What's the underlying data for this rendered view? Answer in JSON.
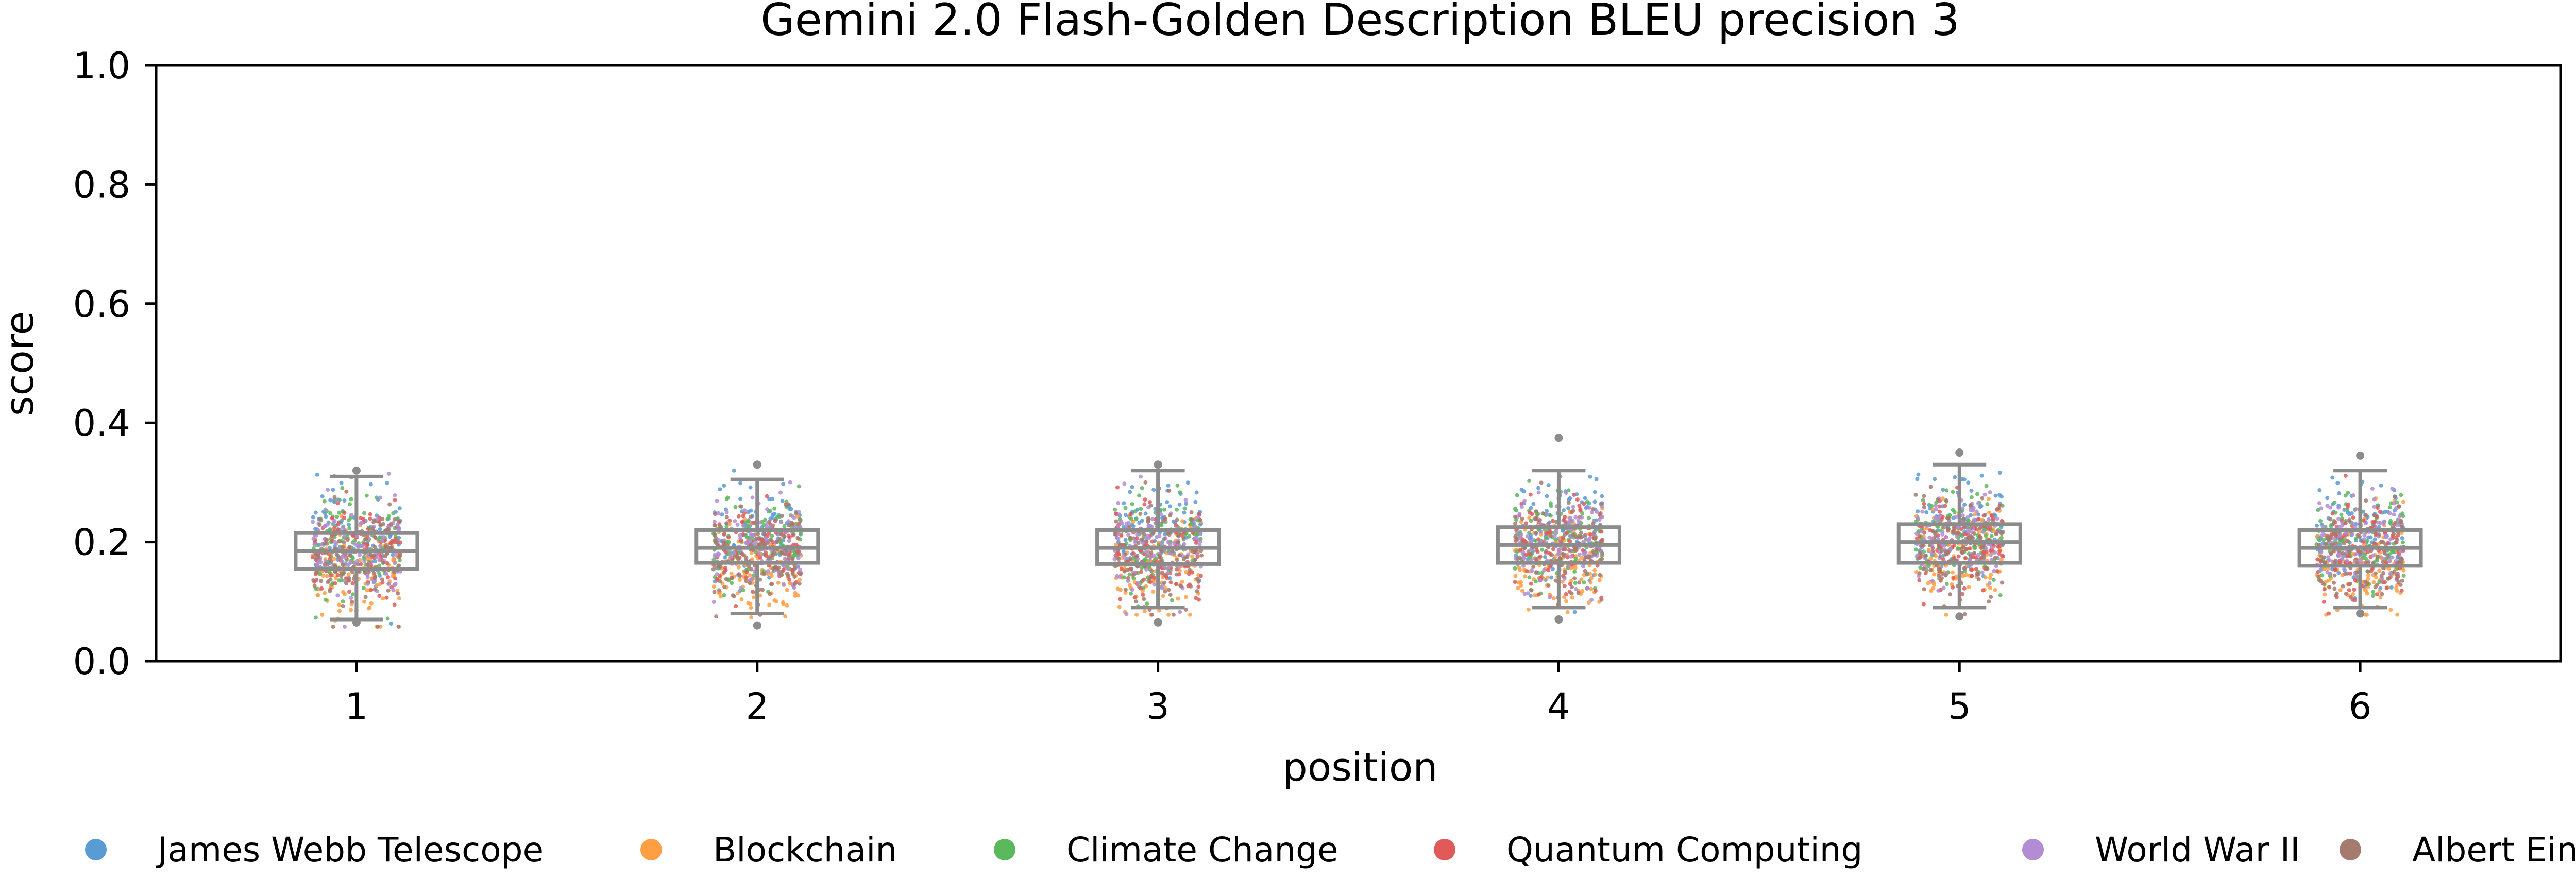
{
  "chart_data": {
    "type": "scatter",
    "subtype": "strip-plot-with-boxplot",
    "title": "Gemini 2.0 Flash-Golden Description BLEU precision 3",
    "xlabel": "position",
    "ylabel": "score",
    "ylim": [
      0.0,
      1.0
    ],
    "yticks": [
      "0.0",
      "0.2",
      "0.4",
      "0.6",
      "0.8",
      "1.0"
    ],
    "categories": [
      "1",
      "2",
      "3",
      "4",
      "5",
      "6"
    ],
    "grid": false,
    "legend_position": "bottom",
    "box_color": "#8c8c8c",
    "boxes": [
      {
        "position": "1",
        "whisker_low": 0.07,
        "q1": 0.155,
        "median": 0.185,
        "q3": 0.215,
        "whisker_high": 0.31,
        "outliers": [
          0.065,
          0.32
        ]
      },
      {
        "position": "2",
        "whisker_low": 0.08,
        "q1": 0.165,
        "median": 0.19,
        "q3": 0.22,
        "whisker_high": 0.305,
        "outliers": [
          0.06,
          0.33
        ]
      },
      {
        "position": "3",
        "whisker_low": 0.09,
        "q1": 0.163,
        "median": 0.19,
        "q3": 0.22,
        "whisker_high": 0.32,
        "outliers": [
          0.065,
          0.33
        ]
      },
      {
        "position": "4",
        "whisker_low": 0.09,
        "q1": 0.165,
        "median": 0.195,
        "q3": 0.225,
        "whisker_high": 0.32,
        "outliers": [
          0.07,
          0.375
        ]
      },
      {
        "position": "5",
        "whisker_low": 0.09,
        "q1": 0.165,
        "median": 0.2,
        "q3": 0.23,
        "whisker_high": 0.33,
        "outliers": [
          0.075,
          0.35
        ]
      },
      {
        "position": "6",
        "whisker_low": 0.09,
        "q1": 0.16,
        "median": 0.19,
        "q3": 0.22,
        "whisker_high": 0.32,
        "outliers": [
          0.08,
          0.345
        ]
      }
    ],
    "series": [
      {
        "name": "James Webb Telescope",
        "color": "#5b9bd5",
        "mean": 0.21,
        "sd": 0.042
      },
      {
        "name": "Blockchain",
        "color": "#ff9f43",
        "mean": 0.16,
        "sd": 0.04
      },
      {
        "name": "Climate Change",
        "color": "#5cb85c",
        "mean": 0.2,
        "sd": 0.04
      },
      {
        "name": "Quantum Computing",
        "color": "#e05a5a",
        "mean": 0.185,
        "sd": 0.04
      },
      {
        "name": "World War II",
        "color": "#b28dd4",
        "mean": 0.195,
        "sd": 0.04
      },
      {
        "name": "Albert Einstein",
        "color": "#a57a6f",
        "mean": 0.18,
        "sd": 0.04
      }
    ]
  }
}
